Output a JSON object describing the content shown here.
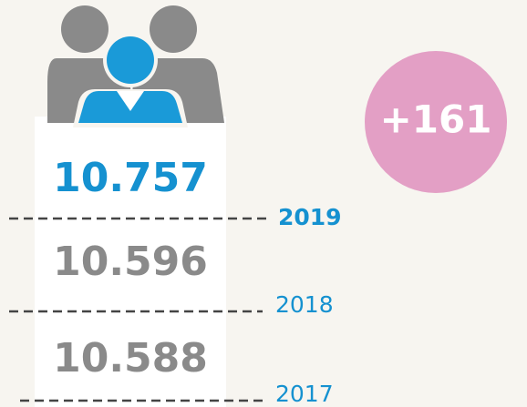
{
  "badge": "+161",
  "rows": [
    {
      "value": "10.757",
      "year": "2019"
    },
    {
      "value": "10.596",
      "year": "2018"
    },
    {
      "value": "10.588",
      "year": "2017"
    }
  ]
}
